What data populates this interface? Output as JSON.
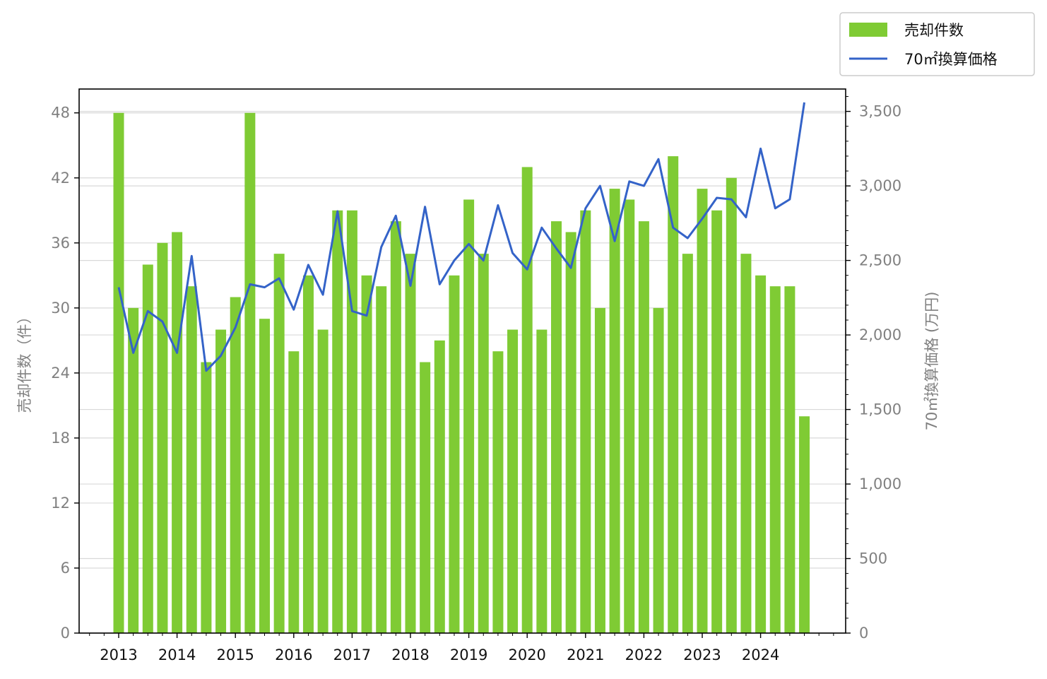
{
  "chart_data": {
    "type": "bar",
    "x_tick_labels": [
      "2013",
      "2014",
      "2015",
      "2016",
      "2017",
      "2018",
      "2019",
      "2020",
      "2021",
      "2022",
      "2023",
      "2024"
    ],
    "ylabel_left": "売却件数（件）",
    "ylabel_right": "70㎡換算価格 (万円)",
    "ylim_left": [
      0,
      50.2
    ],
    "yticks_left": [
      "0",
      "6",
      "12",
      "18",
      "24",
      "30",
      "36",
      "42",
      "48"
    ],
    "ylim_right": [
      0,
      3650
    ],
    "yticks_right": [
      "0",
      "500",
      "1,000",
      "1,500",
      "2,000",
      "2,500",
      "3,000",
      "3,500"
    ],
    "grid": "horizontal",
    "legend_position": "top-right, outside plot",
    "series": [
      {
        "name": "売却件数",
        "type": "bar",
        "axis": "left",
        "color": "#7fcb34",
        "x": [
          2013.0,
          2013.25,
          2013.5,
          2013.75,
          2014.0,
          2014.25,
          2014.5,
          2014.75,
          2015.0,
          2015.25,
          2015.5,
          2015.75,
          2016.0,
          2016.25,
          2016.5,
          2016.75,
          2017.0,
          2017.25,
          2017.5,
          2017.75,
          2018.0,
          2018.25,
          2018.5,
          2018.75,
          2019.0,
          2019.25,
          2019.5,
          2019.75,
          2020.0,
          2020.25,
          2020.5,
          2020.75,
          2021.0,
          2021.25,
          2021.5,
          2021.75,
          2022.0,
          2022.25,
          2022.5,
          2022.75,
          2023.0,
          2023.25,
          2023.5,
          2023.75,
          2024.0,
          2024.25,
          2024.5,
          2024.75
        ],
        "values": [
          48,
          30,
          34,
          36,
          37,
          32,
          25,
          28,
          31,
          48,
          29,
          35,
          26,
          33,
          28,
          39,
          39,
          33,
          32,
          38,
          35,
          25,
          27,
          33,
          40,
          35,
          26,
          28,
          43,
          28,
          38,
          37,
          39,
          30,
          41,
          40,
          38,
          30,
          44,
          35,
          41,
          39,
          42,
          35,
          33,
          32,
          32,
          20
        ]
      },
      {
        "name": "70㎡換算価格",
        "type": "line",
        "axis": "right",
        "color": "#3463c8",
        "x": [
          2013.0,
          2013.25,
          2013.5,
          2013.75,
          2014.0,
          2014.25,
          2014.5,
          2014.75,
          2015.0,
          2015.25,
          2015.5,
          2015.75,
          2016.0,
          2016.25,
          2016.5,
          2016.75,
          2017.0,
          2017.25,
          2017.5,
          2017.75,
          2018.0,
          2018.25,
          2018.5,
          2018.75,
          2019.0,
          2019.25,
          2019.5,
          2019.75,
          2020.0,
          2020.25,
          2020.5,
          2020.75,
          2021.0,
          2021.25,
          2021.5,
          2021.75,
          2022.0,
          2022.25,
          2022.5,
          2022.75,
          2023.0,
          2023.25,
          2023.5,
          2023.75,
          2024.0,
          2024.25,
          2024.5,
          2024.75
        ],
        "values": [
          2320,
          1880,
          2160,
          2090,
          1880,
          2530,
          1760,
          1860,
          2050,
          2340,
          2320,
          2380,
          2170,
          2470,
          2270,
          2830,
          2160,
          2130,
          2590,
          2800,
          2330,
          2860,
          2340,
          2500,
          2610,
          2500,
          2870,
          2550,
          2440,
          2720,
          2580,
          2450,
          2850,
          3000,
          2630,
          3030,
          3000,
          3180,
          2720,
          2650,
          2780,
          2920,
          2910,
          2790,
          3250,
          2850,
          2910,
          3560
        ]
      }
    ]
  }
}
